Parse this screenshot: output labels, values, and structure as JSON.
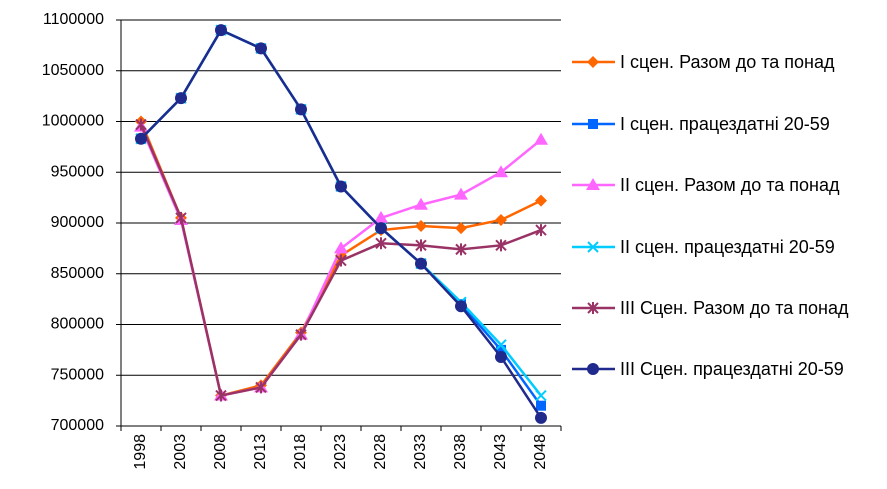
{
  "chart_data": {
    "type": "line",
    "categories": [
      "1998",
      "2003",
      "2008",
      "2013",
      "2018",
      "2023",
      "2028",
      "2033",
      "2038",
      "2043",
      "2048"
    ],
    "ylim": [
      700000,
      1100000
    ],
    "yticks": [
      700000,
      750000,
      800000,
      850000,
      900000,
      950000,
      1000000,
      1050000,
      1100000
    ],
    "grid": true,
    "legend": "right",
    "series": [
      {
        "name": "I сцен. Разом до та понад",
        "color": "#ff6600",
        "marker": "diamond",
        "values": [
          1000000,
          905000,
          730000,
          740000,
          792000,
          868000,
          893000,
          897000,
          895000,
          903000,
          922000
        ]
      },
      {
        "name": "I сцен. працездатні 20-59",
        "color": "#0066ff",
        "marker": "square",
        "values": [
          983000,
          1023000,
          1090000,
          1072000,
          1012000,
          936000,
          895000,
          860000,
          820000,
          775000,
          720000
        ]
      },
      {
        "name": "II сцен. Разом до та понад",
        "color": "#ff66ff",
        "marker": "triangle",
        "values": [
          995000,
          903000,
          730000,
          738000,
          790000,
          875000,
          905000,
          918000,
          928000,
          950000,
          982000
        ]
      },
      {
        "name": "II сцен. працездатні 20-59",
        "color": "#00ccff",
        "marker": "x",
        "values": [
          983000,
          1023000,
          1090000,
          1072000,
          1012000,
          936000,
          895000,
          860000,
          822000,
          780000,
          730000
        ]
      },
      {
        "name": "III Сцен. Разом до та понад",
        "color": "#993366",
        "marker": "star",
        "values": [
          997000,
          905000,
          730000,
          738000,
          790000,
          863000,
          880000,
          878000,
          874000,
          878000,
          893000
        ]
      },
      {
        "name": "III Сцен. працездатні 20-59",
        "color": "#1f2a8c",
        "marker": "circle",
        "values": [
          983000,
          1023000,
          1090000,
          1072000,
          1012000,
          936000,
          895000,
          860000,
          818000,
          768000,
          708000
        ]
      }
    ]
  }
}
